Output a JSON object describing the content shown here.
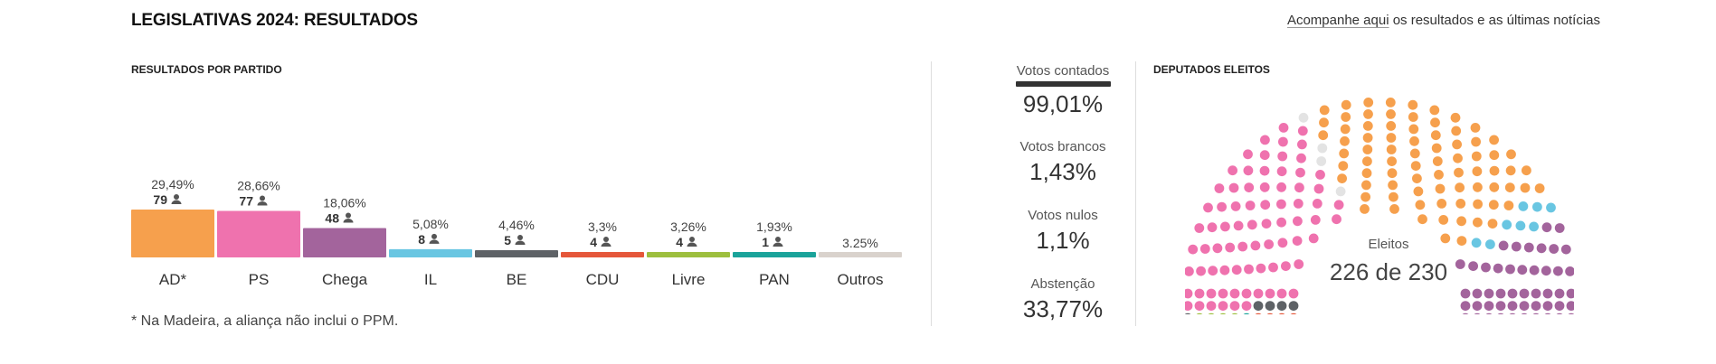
{
  "header": {
    "title": "LEGISLATIVAS 2024: RESULTADOS",
    "link_text": "Acompanhe aqui",
    "link_rest": " os resultados e as últimas notícias"
  },
  "results_section": {
    "label": "RESULTADOS POR PARTIDO"
  },
  "elected_section": {
    "label": "DEPUTADOS ELEITOS"
  },
  "chart_data": {
    "type": "bar",
    "categories": [
      "AD*",
      "PS",
      "Chega",
      "IL",
      "BE",
      "CDU",
      "Livre",
      "PAN",
      "Outros"
    ],
    "values": [
      29.49,
      28.66,
      18.06,
      5.08,
      4.46,
      3.3,
      3.26,
      1.93,
      3.25
    ],
    "value_labels": [
      "29,49%",
      "28,66%",
      "18,06%",
      "5,08%",
      "4,46%",
      "3,3%",
      "3,26%",
      "1,93%",
      "3.25%"
    ],
    "seats": [
      79,
      77,
      48,
      8,
      5,
      4,
      4,
      1,
      null
    ],
    "colors": [
      "#f6a04d",
      "#ef72ae",
      "#a3649c",
      "#69c6e2",
      "#5e6266",
      "#e5573a",
      "#9dbf3e",
      "#1aa39a",
      "#d9d2cc"
    ],
    "ylim": [
      0,
      29.49
    ]
  },
  "footnote": "* Na Madeira, a aliança não inclui o PPM.",
  "stats": [
    {
      "label": "Votos contados",
      "value": "99,01%"
    },
    {
      "label": "Votos brancos",
      "value": "1,43%"
    },
    {
      "label": "Votos nulos",
      "value": "1,1%"
    },
    {
      "label": "Abstenção",
      "value": "33,77%"
    }
  ],
  "hemicycle": {
    "center_label": "Eleitos",
    "center_value": "226 de 230",
    "total_seats": 230,
    "seat_colors": [
      "#f6a04d",
      "#ef72ae",
      "#a3649c",
      "#69c6e2",
      "#5e6266",
      "#e5573a",
      "#9dbf3e",
      "#1aa39a",
      "#e3e3e3"
    ],
    "seats": [
      79,
      77,
      48,
      8,
      5,
      4,
      4,
      1,
      4
    ]
  }
}
